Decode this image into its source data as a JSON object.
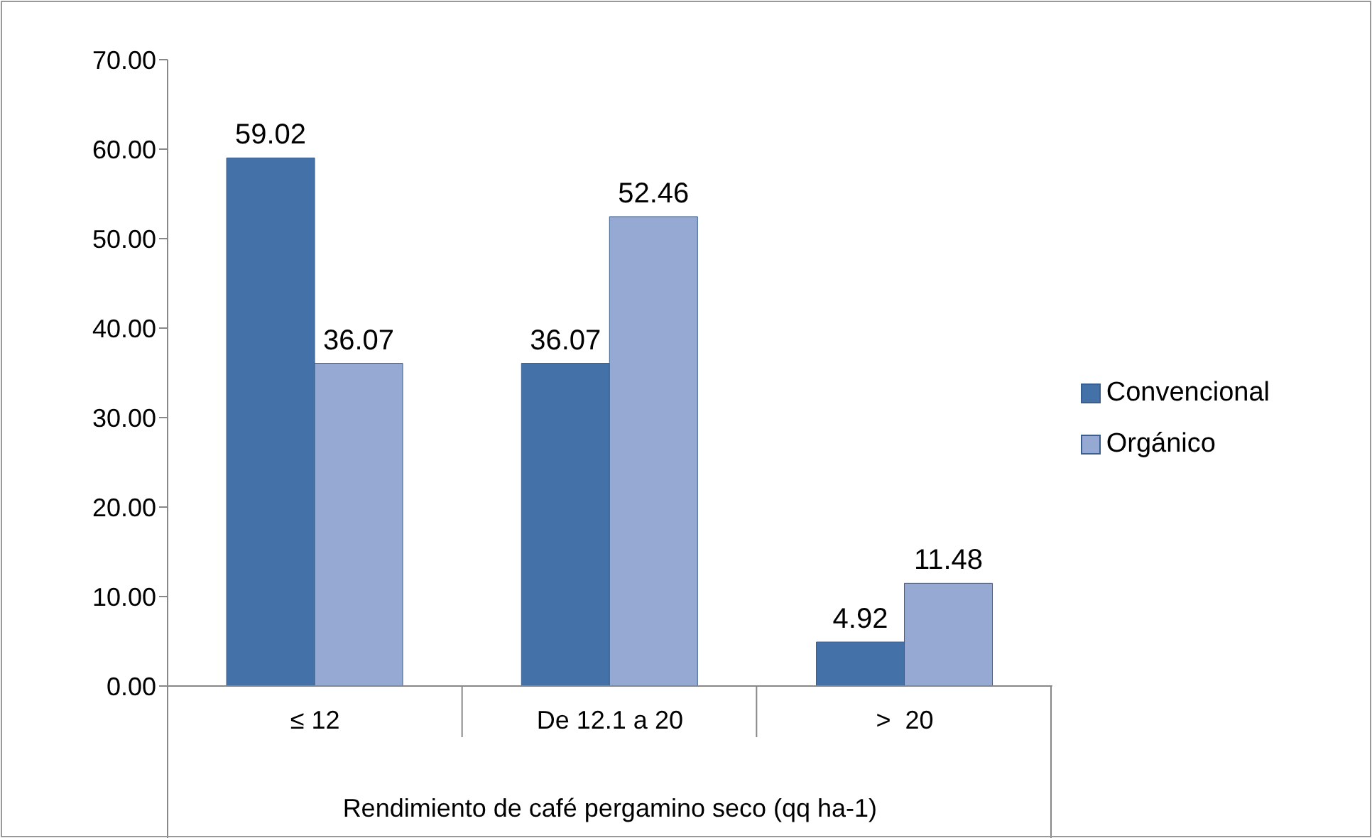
{
  "chart_data": {
    "type": "bar",
    "xlabel": "Rendimiento de café pergamino seco  (qq ha-1)",
    "categories": [
      "≤ 12",
      "De 12.1 a 20",
      ">  20"
    ],
    "series": [
      {
        "name": "Convencional",
        "color": "#4471a7",
        "values": [
          59.02,
          36.07,
          4.92
        ]
      },
      {
        "name": "Orgánico",
        "color": "#95a9d2",
        "values": [
          36.07,
          52.46,
          11.48
        ]
      }
    ],
    "ylim": [
      0,
      70
    ],
    "yticks": [
      {
        "value": 0,
        "label": "0.00"
      },
      {
        "value": 10,
        "label": "10.00"
      },
      {
        "value": 20,
        "label": "20.00"
      },
      {
        "value": 30,
        "label": "30.00"
      },
      {
        "value": 40,
        "label": "40.00"
      },
      {
        "value": 50,
        "label": "50.00"
      },
      {
        "value": 60,
        "label": "60.00"
      },
      {
        "value": 70,
        "label": "70.00"
      }
    ],
    "grid": false,
    "legend": "right",
    "data_labels": true
  }
}
